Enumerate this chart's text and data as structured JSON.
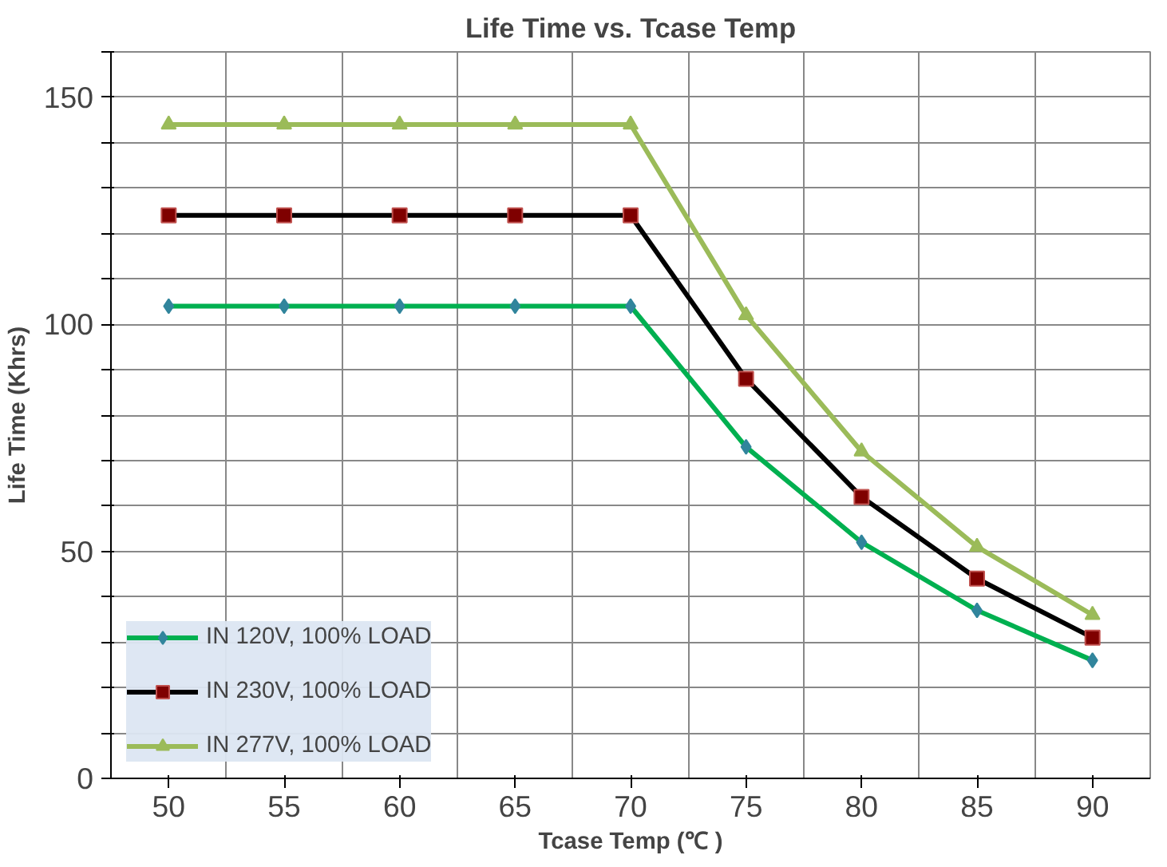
{
  "chart_data": {
    "type": "line",
    "title": "Life Time vs. Tcase Temp",
    "xlabel": "Tcase Temp (℃ )",
    "ylabel": "Life Time (Khrs)",
    "categories": [
      "50",
      "55",
      "60",
      "65",
      "70",
      "75",
      "80",
      "85",
      "90"
    ],
    "series": [
      {
        "name": "IN 120V, 100% LOAD",
        "color": "#00b050",
        "marker": "diamond",
        "values": [
          104,
          104,
          104,
          104,
          104,
          73,
          52,
          37,
          26
        ]
      },
      {
        "name": "IN 230V, 100% LOAD",
        "color": "#000000",
        "marker": "square",
        "values": [
          124,
          124,
          124,
          124,
          124,
          88,
          62,
          44,
          31
        ]
      },
      {
        "name": "IN 277V, 100% LOAD",
        "color": "#9bbb59",
        "marker": "triangle",
        "values": [
          144,
          144,
          144,
          144,
          144,
          102,
          72,
          51,
          36
        ]
      }
    ],
    "ylim": [
      0,
      160
    ],
    "yticks": [
      0,
      {
        "value": 10,
        "label": null
      },
      {
        "value": 20,
        "label": null
      },
      {
        "value": 30,
        "label": null
      },
      {
        "value": 40,
        "label": null
      },
      50,
      {
        "value": 60,
        "label": null
      },
      {
        "value": 70,
        "label": null
      },
      {
        "value": 80,
        "label": null
      },
      {
        "value": 90,
        "label": null
      },
      100,
      {
        "value": 110,
        "label": null
      },
      {
        "value": 120,
        "label": null
      },
      {
        "value": 130,
        "label": null
      },
      {
        "value": 140,
        "label": null
      },
      150,
      {
        "value": 160,
        "label": null
      }
    ],
    "grid": true,
    "legend": "bottom left",
    "line_style": "solid"
  }
}
